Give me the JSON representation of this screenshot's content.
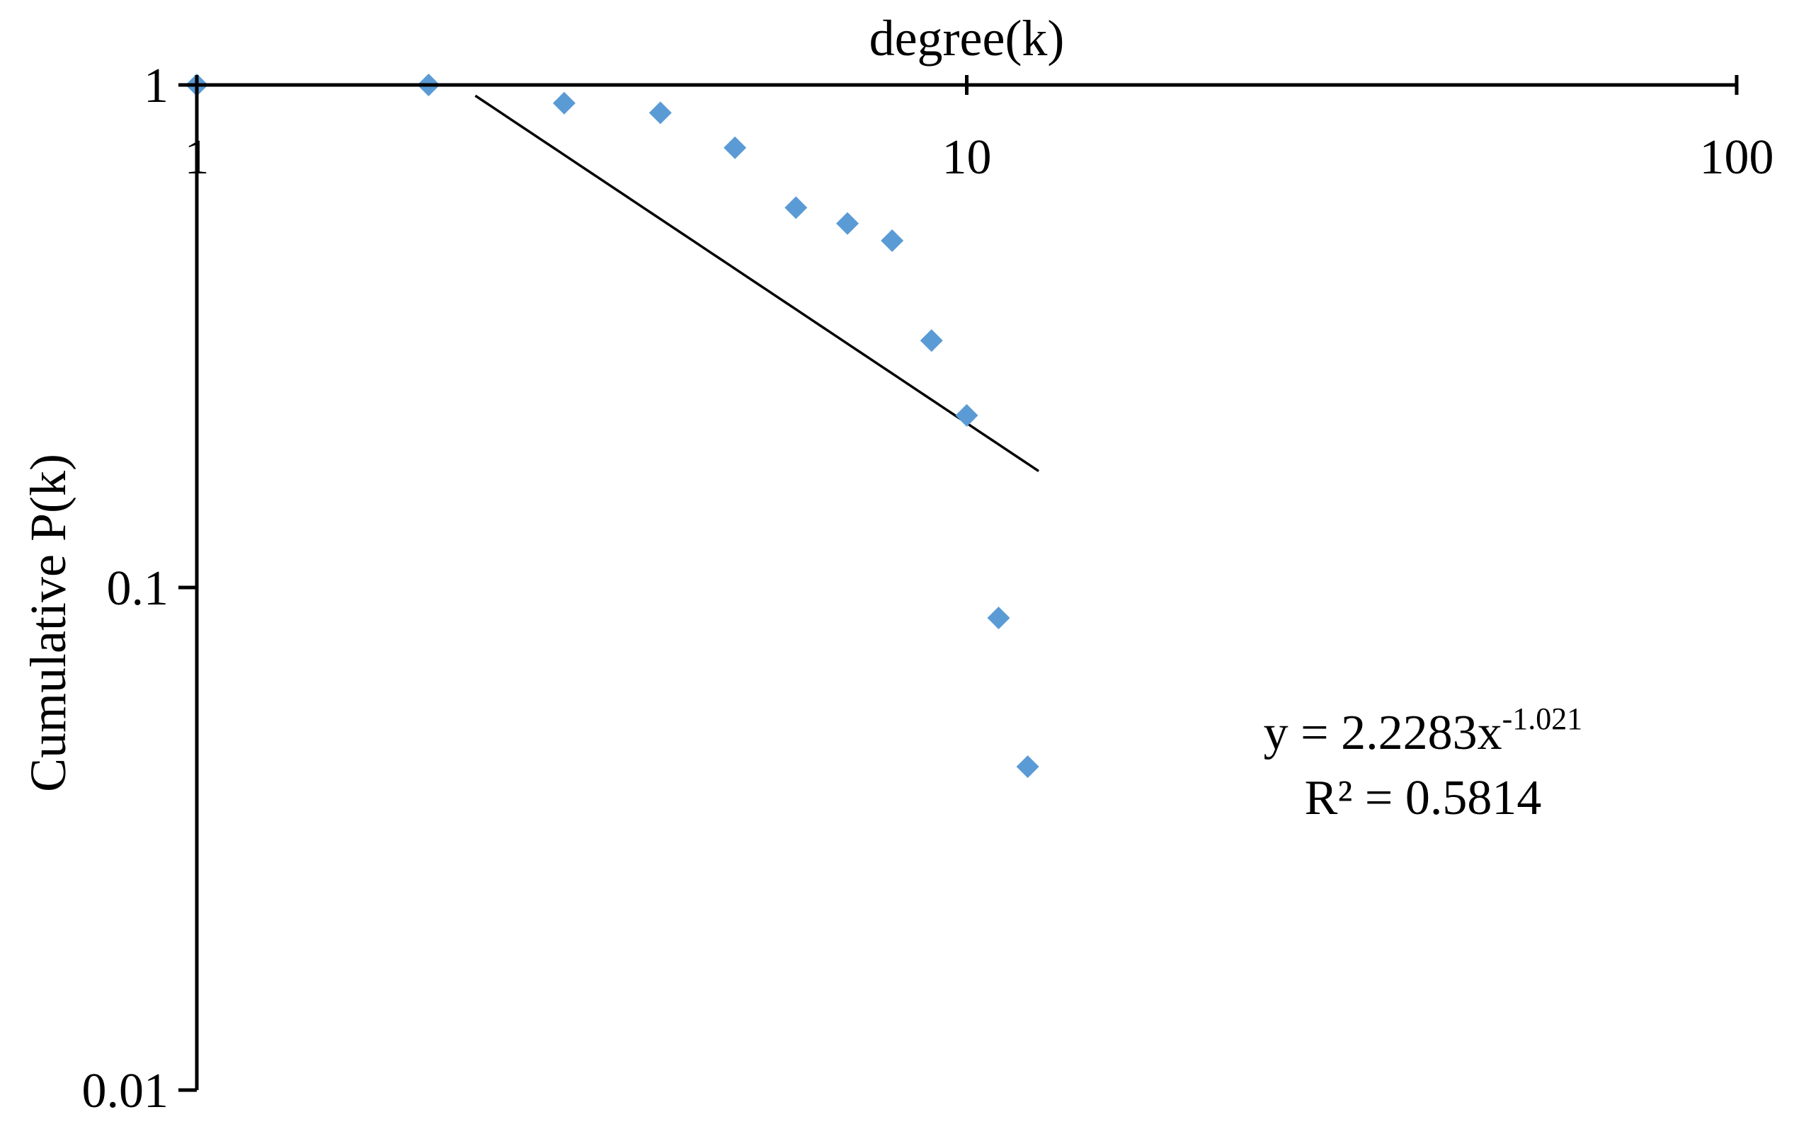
{
  "chart_data": {
    "type": "scatter",
    "title": "",
    "xlabel": "degree(k)",
    "ylabel": "Cumulative P(k)",
    "x_scale": "log",
    "y_scale": "log",
    "xlim": [
      1,
      100
    ],
    "ylim": [
      0.01,
      1
    ],
    "x_ticks": [
      {
        "value": 1,
        "label": "1"
      },
      {
        "value": 10,
        "label": "10"
      },
      {
        "value": 100,
        "label": "100"
      }
    ],
    "y_ticks": [
      {
        "value": 1,
        "label": "1"
      },
      {
        "value": 0.1,
        "label": "0.1"
      },
      {
        "value": 0.01,
        "label": "0.01"
      }
    ],
    "grid": false,
    "legend": "none",
    "marker": "diamond",
    "marker_color": "#5B9BD5",
    "axis_color": "#000000",
    "series": [
      {
        "x": [
          1,
          2,
          3,
          4,
          5,
          6,
          7,
          8,
          9,
          10,
          11,
          12
        ],
        "y": [
          1.0,
          1.0,
          0.92,
          0.88,
          0.75,
          0.57,
          0.53,
          0.49,
          0.31,
          0.22,
          0.087,
          0.044
        ]
      }
    ],
    "trendline": {
      "type": "power",
      "coefficient": 2.2283,
      "exponent": -1.021,
      "x_start": 2.3,
      "x_end": 12.4
    },
    "annotation": {
      "equation_base": "y = 2.2283x",
      "equation_exponent": "-1.021",
      "r_squared": "R² = 0.5814"
    }
  }
}
